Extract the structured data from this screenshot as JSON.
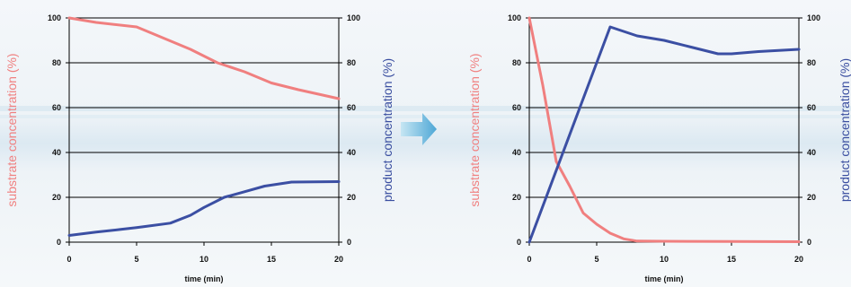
{
  "colors": {
    "substrate": "#f07f7f",
    "product": "#3b4fa3",
    "grid": "#000000",
    "arrow": "#6fb9dd"
  },
  "icons": {
    "arrow": "right-arrow-icon"
  },
  "chart_data": [
    {
      "type": "line",
      "xlabel": "time (min)",
      "ylabel_left": "substrate concentration (%)",
      "ylabel_right": "product concentration (%)",
      "xlim": [
        0,
        20
      ],
      "ylim": [
        0,
        100
      ],
      "x_ticks": [
        "0",
        "5",
        "10",
        "15",
        "20"
      ],
      "y_ticks": [
        "0",
        "20",
        "40",
        "60",
        "80",
        "100"
      ],
      "grid": true,
      "series": [
        {
          "key": "substrate",
          "x": [
            0,
            2,
            5,
            7,
            9,
            11,
            13,
            15,
            17,
            20
          ],
          "y": [
            100,
            98,
            96,
            91,
            86,
            80,
            76,
            71,
            68,
            64
          ]
        },
        {
          "key": "product",
          "x": [
            0,
            2,
            5,
            7.5,
            9,
            10,
            11.5,
            13,
            14.5,
            16.5,
            20
          ],
          "y": [
            3,
            4.5,
            6.5,
            8.5,
            12,
            15.5,
            20,
            22.5,
            25,
            26.8,
            27
          ]
        }
      ]
    },
    {
      "type": "line",
      "xlabel": "time (min)",
      "ylabel_left": "substrate concentration (%)",
      "ylabel_right": "product concentration (%)",
      "xlim": [
        0,
        20
      ],
      "ylim": [
        0,
        100
      ],
      "x_ticks": [
        "0",
        "5",
        "10",
        "15",
        "20"
      ],
      "y_ticks": [
        "0",
        "20",
        "40",
        "60",
        "80",
        "100"
      ],
      "grid": true,
      "series": [
        {
          "key": "substrate",
          "x": [
            0,
            1,
            2,
            3,
            4,
            5,
            6,
            7,
            8,
            10,
            15,
            20
          ],
          "y": [
            100,
            70,
            36,
            25,
            13,
            8,
            4,
            1.5,
            0.5,
            0.4,
            0.3,
            0.2
          ]
        },
        {
          "key": "product",
          "x": [
            0,
            6,
            8,
            10,
            12,
            14,
            15,
            17,
            20
          ],
          "y": [
            0,
            96,
            92,
            90,
            87,
            84,
            84,
            85,
            86
          ]
        }
      ]
    }
  ]
}
